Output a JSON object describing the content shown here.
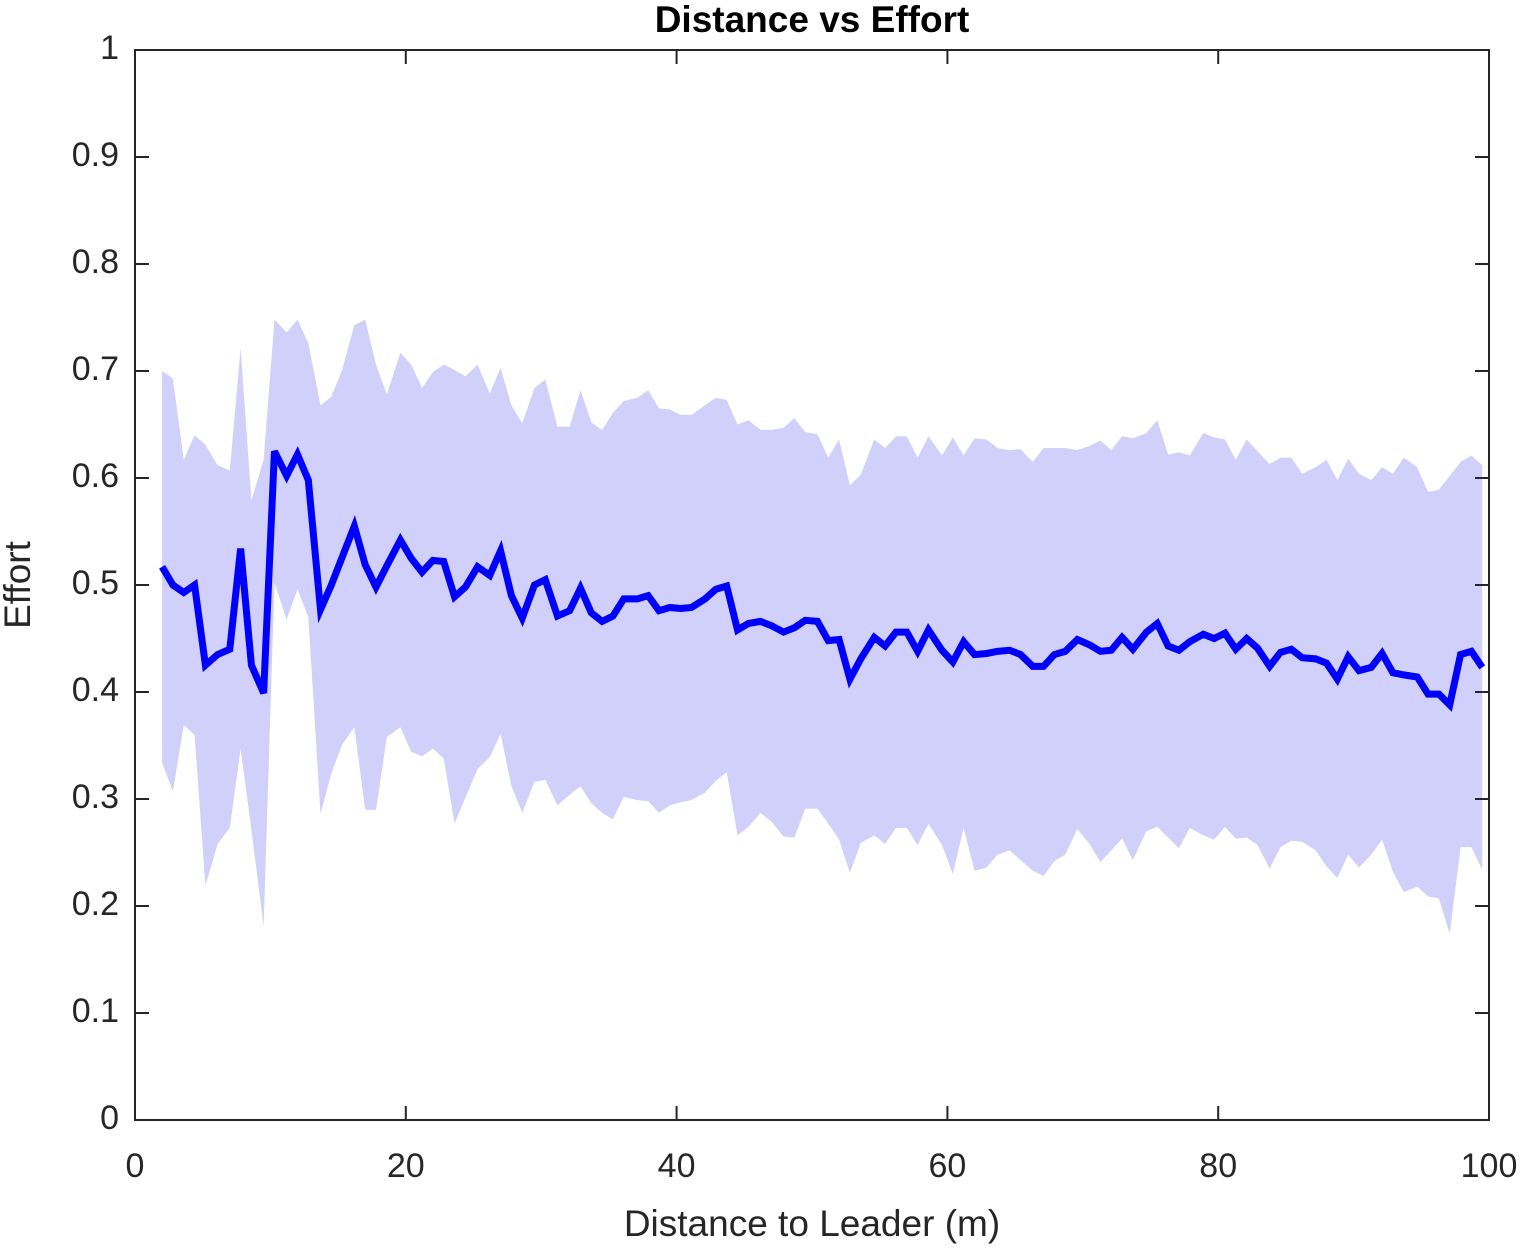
{
  "chart_data": {
    "type": "line_band",
    "title": "Distance vs Effort",
    "x_label": "Distance to Leader (m)",
    "y_label": "Effort",
    "xlim": [
      0,
      100
    ],
    "xticks": [
      0,
      20,
      40,
      60,
      80,
      100
    ],
    "ylim": [
      0,
      1
    ],
    "yticks": [
      0,
      0.1,
      0.2,
      0.3,
      0.4,
      0.5,
      0.6,
      0.7,
      0.8,
      0.9,
      1
    ],
    "x": [
      2,
      2.8,
      3.6,
      4.4,
      5.2,
      6.1,
      7.0,
      7.8,
      8.6,
      9.5,
      10.3,
      11.2,
      12.0,
      12.8,
      13.7,
      14.5,
      15.3,
      16.2,
      17.0,
      17.8,
      18.6,
      19.6,
      20.4,
      21.2,
      22.0,
      22.8,
      23.6,
      24.4,
      25.3,
      26.2,
      27.0,
      27.8,
      28.6,
      29.5,
      30.3,
      31.2,
      32.1,
      32.9,
      33.7,
      34.5,
      35.3,
      36.1,
      37.1,
      37.9,
      38.7,
      39.5,
      40.3,
      41.1,
      42.1,
      42.9,
      43.7,
      44.5,
      45.3,
      46.2,
      47.0,
      47.9,
      48.7,
      49.5,
      50.4,
      51.2,
      52.0,
      52.8,
      53.6,
      54.6,
      55.4,
      56.2,
      57.0,
      57.8,
      58.6,
      59.6,
      60.4,
      61.2,
      62.0,
      62.9,
      63.7,
      64.6,
      65.4,
      66.3,
      67.1,
      67.9,
      68.7,
      69.6,
      70.5,
      71.3,
      72.1,
      72.9,
      73.7,
      74.7,
      75.5,
      76.3,
      77.1,
      77.9,
      78.9,
      79.7,
      80.5,
      81.3,
      82.1,
      82.9,
      83.8,
      84.6,
      85.4,
      86.2,
      87.2,
      88.0,
      88.8,
      89.6,
      90.4,
      91.3,
      92.1,
      92.9,
      93.7,
      94.7,
      95.5,
      96.3,
      97.1,
      97.9,
      98.7,
      99.5
    ],
    "series": [
      {
        "color": "#0000ff",
        "values": [
          0.517,
          0.5,
          0.493,
          0.5,
          0.425,
          0.435,
          0.44,
          0.534,
          0.425,
          0.399,
          0.625,
          0.602,
          0.622,
          0.598,
          0.477,
          0.5,
          0.526,
          0.555,
          0.519,
          0.498,
          0.518,
          0.542,
          0.525,
          0.512,
          0.523,
          0.522,
          0.489,
          0.498,
          0.517,
          0.509,
          0.532,
          0.49,
          0.469,
          0.5,
          0.505,
          0.471,
          0.476,
          0.497,
          0.474,
          0.466,
          0.471,
          0.487,
          0.487,
          0.49,
          0.476,
          0.479,
          0.478,
          0.479,
          0.487,
          0.496,
          0.499,
          0.458,
          0.464,
          0.466,
          0.462,
          0.456,
          0.46,
          0.467,
          0.466,
          0.448,
          0.449,
          0.412,
          0.431,
          0.451,
          0.443,
          0.456,
          0.456,
          0.438,
          0.458,
          0.439,
          0.428,
          0.447,
          0.435,
          0.436,
          0.438,
          0.439,
          0.435,
          0.424,
          0.424,
          0.435,
          0.438,
          0.449,
          0.444,
          0.438,
          0.439,
          0.451,
          0.44,
          0.456,
          0.464,
          0.443,
          0.439,
          0.447,
          0.454,
          0.45,
          0.455,
          0.44,
          0.45,
          0.441,
          0.424,
          0.437,
          0.44,
          0.432,
          0.431,
          0.427,
          0.412,
          0.433,
          0.42,
          0.423,
          0.436,
          0.418,
          0.416,
          0.414,
          0.398,
          0.398,
          0.388,
          0.435,
          0.438,
          0.423
        ]
      }
    ],
    "band": {
      "color": "#d0d0fb",
      "upper": [
        0.7,
        0.693,
        0.617,
        0.64,
        0.631,
        0.612,
        0.607,
        0.721,
        0.579,
        0.617,
        0.748,
        0.736,
        0.748,
        0.726,
        0.668,
        0.676,
        0.701,
        0.743,
        0.748,
        0.706,
        0.678,
        0.717,
        0.706,
        0.684,
        0.699,
        0.706,
        0.701,
        0.695,
        0.706,
        0.679,
        0.703,
        0.668,
        0.651,
        0.684,
        0.692,
        0.648,
        0.648,
        0.682,
        0.652,
        0.645,
        0.661,
        0.672,
        0.675,
        0.682,
        0.665,
        0.664,
        0.659,
        0.659,
        0.668,
        0.675,
        0.673,
        0.65,
        0.654,
        0.645,
        0.645,
        0.647,
        0.656,
        0.643,
        0.641,
        0.619,
        0.636,
        0.593,
        0.603,
        0.636,
        0.628,
        0.639,
        0.639,
        0.619,
        0.639,
        0.621,
        0.638,
        0.621,
        0.637,
        0.636,
        0.628,
        0.626,
        0.627,
        0.615,
        0.628,
        0.628,
        0.628,
        0.626,
        0.63,
        0.635,
        0.626,
        0.639,
        0.637,
        0.642,
        0.654,
        0.622,
        0.624,
        0.621,
        0.642,
        0.638,
        0.636,
        0.617,
        0.636,
        0.625,
        0.613,
        0.619,
        0.619,
        0.604,
        0.61,
        0.617,
        0.598,
        0.618,
        0.604,
        0.598,
        0.61,
        0.604,
        0.619,
        0.61,
        0.587,
        0.589,
        0.602,
        0.615,
        0.621,
        0.612
      ],
      "lower": [
        0.334,
        0.307,
        0.369,
        0.36,
        0.219,
        0.258,
        0.273,
        0.347,
        0.271,
        0.181,
        0.502,
        0.468,
        0.496,
        0.47,
        0.286,
        0.324,
        0.351,
        0.367,
        0.29,
        0.29,
        0.358,
        0.367,
        0.344,
        0.34,
        0.347,
        0.338,
        0.277,
        0.301,
        0.328,
        0.339,
        0.361,
        0.312,
        0.287,
        0.316,
        0.318,
        0.294,
        0.304,
        0.312,
        0.296,
        0.287,
        0.281,
        0.302,
        0.299,
        0.298,
        0.287,
        0.294,
        0.297,
        0.299,
        0.306,
        0.317,
        0.325,
        0.266,
        0.274,
        0.287,
        0.279,
        0.265,
        0.264,
        0.291,
        0.291,
        0.277,
        0.262,
        0.231,
        0.259,
        0.266,
        0.258,
        0.273,
        0.273,
        0.257,
        0.277,
        0.257,
        0.23,
        0.273,
        0.233,
        0.236,
        0.248,
        0.252,
        0.243,
        0.233,
        0.228,
        0.242,
        0.248,
        0.272,
        0.258,
        0.241,
        0.252,
        0.263,
        0.243,
        0.27,
        0.274,
        0.264,
        0.254,
        0.273,
        0.266,
        0.262,
        0.274,
        0.263,
        0.264,
        0.257,
        0.235,
        0.255,
        0.261,
        0.26,
        0.252,
        0.237,
        0.226,
        0.248,
        0.236,
        0.248,
        0.262,
        0.232,
        0.213,
        0.218,
        0.209,
        0.207,
        0.174,
        0.255,
        0.255,
        0.234
      ]
    }
  }
}
